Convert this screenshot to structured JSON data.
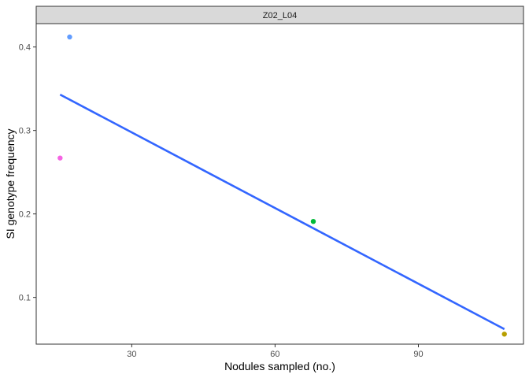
{
  "chart_data": {
    "type": "scatter",
    "panel_title": "Z02_L04",
    "xlabel": "Nodules sampled (no.)",
    "ylabel": "SI genotype frequency",
    "xlim": [
      10,
      112
    ],
    "ylim": [
      0.044,
      0.428
    ],
    "x_ticks": [
      30,
      60,
      90
    ],
    "x_tick_labels": [
      "30",
      "60",
      "90"
    ],
    "y_ticks": [
      0.1,
      0.2,
      0.3,
      0.4
    ],
    "y_tick_labels": [
      "0.1",
      "0.2",
      "0.3",
      "0.4"
    ],
    "grid": false,
    "points": [
      {
        "x": 17,
        "y": 0.412,
        "color": "#619CFF"
      },
      {
        "x": 15,
        "y": 0.267,
        "color": "#F564E3"
      },
      {
        "x": 68,
        "y": 0.191,
        "color": "#00BA38"
      },
      {
        "x": 108,
        "y": 0.056,
        "color": "#B79F00"
      }
    ],
    "trend_line": {
      "x": [
        15,
        108
      ],
      "y": [
        0.343,
        0.062
      ],
      "color": "#3366FF"
    }
  }
}
